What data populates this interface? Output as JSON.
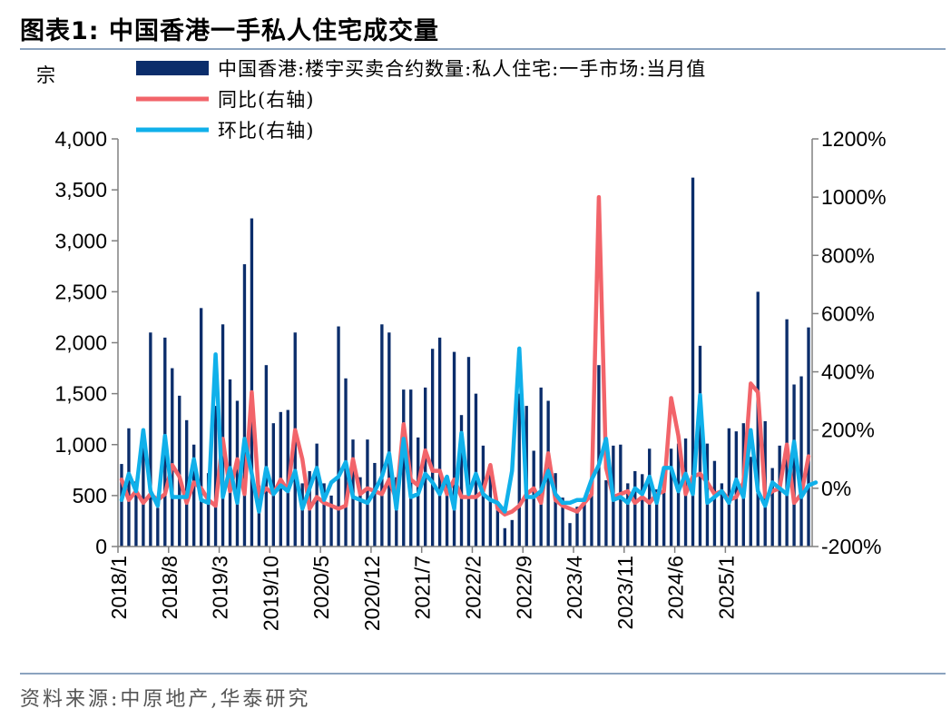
{
  "header": {
    "title": "图表1:   中国香港一手私人住宅成交量"
  },
  "footer": {
    "source": "资料来源:中原地产,华泰研究"
  },
  "chart_data": {
    "type": "bar",
    "left_axis_unit": "宗",
    "ylim": [
      0,
      4000
    ],
    "y_ticks": [
      0,
      500,
      1000,
      1500,
      2000,
      2500,
      3000,
      3500,
      4000
    ],
    "y_tick_labels": [
      "0",
      "500",
      "1,000",
      "1,500",
      "2,000",
      "2,500",
      "3,000",
      "3,500",
      "4,000"
    ],
    "y2lim": [
      -200,
      1200
    ],
    "y2_ticks": [
      -200,
      0,
      200,
      400,
      600,
      800,
      1000,
      1200
    ],
    "y2_tick_labels": [
      "-200%",
      "0%",
      "200%",
      "400%",
      "600%",
      "800%",
      "1000%",
      "1200%"
    ],
    "x_tick_labels": [
      "2018/1",
      "2018/8",
      "2019/3",
      "2019/10",
      "2020/5",
      "2020/12",
      "2021/7",
      "2022/2",
      "2022/9",
      "2023/4",
      "2023/11",
      "2024/6",
      "2025/1"
    ],
    "x_tick_step": 7,
    "legend": {
      "bar": "中国香港:楼宇买卖合约数量:私人住宅:一手市场:当月值",
      "yoy": "同比(右轴)",
      "mom": "环比(右轴)"
    },
    "colors": {
      "bar": "#0b2d6b",
      "yoy": "#f2646a",
      "mom": "#10b0ea",
      "axis": "#808080"
    },
    "series": [
      {
        "name": "中国香港:楼宇买卖合约数量:私人住宅:一手市场:当月值",
        "type": "bar",
        "axis": "left",
        "values": [
          810,
          1160,
          640,
          1000,
          2100,
          380,
          2050,
          1750,
          1480,
          1240,
          1000,
          2340,
          720,
          1380,
          2180,
          1640,
          1430,
          2770,
          3220,
          600,
          1780,
          1210,
          1320,
          1340,
          2100,
          620,
          740,
          1010,
          620,
          500,
          2160,
          1650,
          1050,
          680,
          1050,
          820,
          2180,
          2100,
          680,
          1540,
          1540,
          1070,
          1560,
          1940,
          2050,
          640,
          1910,
          1290,
          1860,
          1500,
          990,
          730,
          360,
          180,
          260,
          1500,
          1380,
          940,
          1560,
          1430,
          720,
          480,
          230,
          390,
          480,
          600,
          1780,
          650,
          990,
          1000,
          620,
          740,
          710,
          960,
          560,
          580,
          960,
          1010,
          1060,
          3620,
          1970,
          1010,
          840,
          620,
          1160,
          1130,
          1210,
          880,
          2500,
          1230,
          770,
          990,
          2230,
          1590,
          1670,
          2150
        ]
      },
      {
        "name": "同比(右轴)",
        "type": "line",
        "axis": "right",
        "values": [
          30,
          -40,
          -10,
          -50,
          -20,
          -40,
          -20,
          80,
          40,
          -50,
          20,
          0,
          -40,
          -60,
          170,
          -10,
          100,
          -20,
          330,
          -30,
          0,
          -20,
          30,
          -10,
          200,
          100,
          -70,
          -30,
          -50,
          -60,
          -70,
          -60,
          100,
          -20,
          0,
          -10,
          -20,
          30,
          -40,
          220,
          30,
          10,
          130,
          60,
          60,
          -20,
          30,
          -30,
          -30,
          -30,
          -10,
          80,
          -70,
          -90,
          -80,
          -60,
          -20,
          0,
          -50,
          120,
          -40,
          -60,
          -70,
          -80,
          -50,
          -20,
          1000,
          70,
          -30,
          -20,
          -10,
          -50,
          -30,
          -50,
          -20,
          -10,
          310,
          180,
          -20,
          40,
          50,
          20,
          -20,
          -10,
          -40,
          -30,
          20,
          360,
          330,
          -30,
          -10,
          0,
          150,
          -50,
          -20,
          110
        ]
      },
      {
        "name": "环比(右轴)",
        "type": "line",
        "axis": "right",
        "values": [
          -40,
          50,
          -10,
          200,
          -10,
          -60,
          180,
          -30,
          -30,
          -30,
          100,
          -40,
          -50,
          460,
          -30,
          70,
          -50,
          170,
          50,
          -80,
          70,
          -20,
          10,
          -10,
          60,
          -70,
          0,
          70,
          -40,
          20,
          40,
          90,
          -30,
          -40,
          -50,
          -10,
          40,
          120,
          -70,
          170,
          -30,
          -20,
          50,
          20,
          -20,
          40,
          -70,
          190,
          -20,
          50,
          -20,
          -40,
          -50,
          -80,
          60,
          480,
          -30,
          -30,
          -10,
          60,
          -20,
          -50,
          -50,
          -40,
          -40,
          30,
          80,
          170,
          -40,
          -30,
          -50,
          0,
          -20,
          40,
          -50,
          70,
          70,
          -10,
          50,
          -20,
          320,
          -50,
          -30,
          -10,
          -50,
          30,
          -30,
          200,
          -10,
          -60,
          20,
          0,
          -20,
          160,
          -30,
          10,
          20
        ]
      }
    ]
  }
}
